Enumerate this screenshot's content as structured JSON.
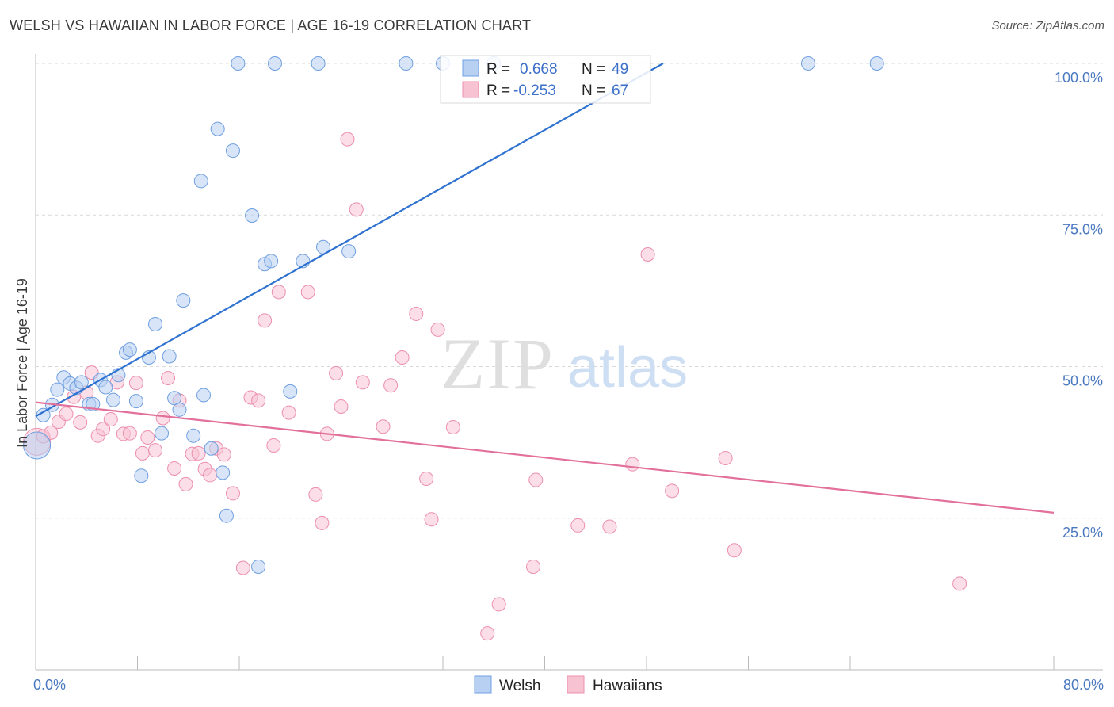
{
  "header": {
    "title": "WELSH VS HAWAIIAN IN LABOR FORCE | AGE 16-19 CORRELATION CHART",
    "source": "Source: ZipAtlas.com"
  },
  "watermark": {
    "zip": "ZIP",
    "atlas": "atlas"
  },
  "colors": {
    "welsh_fill": "#b8d0f2",
    "welsh_stroke": "#6f9fe0",
    "welsh_line": "#2f72d0",
    "hawaiian_fill": "#f7c3d3",
    "hawaiian_stroke": "#ec8fae",
    "hawaiian_line": "#e2709a",
    "grid": "#d8d8d8",
    "axis_text": "#4a78c0"
  },
  "legend": {
    "rows": [
      {
        "r_label": "R =",
        "r_value": "0.668",
        "n_label": "N =",
        "n_value": "49"
      },
      {
        "r_label": "R =",
        "r_value": "-0.253",
        "n_label": "N =",
        "n_value": "67"
      }
    ]
  },
  "bottom_legend": {
    "welsh": "Welsh",
    "hawaiians": "Hawaiians"
  },
  "chart_data": {
    "type": "scatter",
    "title": "WELSH VS HAWAIIAN IN LABOR FORCE | AGE 16-19 CORRELATION CHART",
    "xlabel": "",
    "ylabel": "In Labor Force | Age 16-19",
    "xlim": [
      0,
      80
    ],
    "ylim": [
      0,
      100
    ],
    "x_tick_labels": [
      "0.0%",
      "80.0%"
    ],
    "y_tick_labels": [
      "100.0%",
      "75.0%",
      "50.0%",
      "25.0%"
    ],
    "y_ticks": [
      100,
      75,
      50,
      25
    ],
    "grid": true,
    "legend_position": "top-center",
    "series": [
      {
        "name": "Welsh",
        "r": 0.668,
        "n": 49,
        "trend": {
          "x": [
            0,
            49.3
          ],
          "y": [
            41.8,
            100
          ]
        },
        "points": [
          [
            0.1,
            37.0
          ],
          [
            0.6,
            42.0
          ],
          [
            1.3,
            43.7
          ],
          [
            1.7,
            46.2
          ],
          [
            2.2,
            48.2
          ],
          [
            2.7,
            47.2
          ],
          [
            3.2,
            46.5
          ],
          [
            3.6,
            47.4
          ],
          [
            4.2,
            43.8
          ],
          [
            4.5,
            43.8
          ],
          [
            5.1,
            47.8
          ],
          [
            5.5,
            46.6
          ],
          [
            6.1,
            44.5
          ],
          [
            6.5,
            48.6
          ],
          [
            7.1,
            52.3
          ],
          [
            7.4,
            52.8
          ],
          [
            7.9,
            44.3
          ],
          [
            8.3,
            32.0
          ],
          [
            8.9,
            51.5
          ],
          [
            9.4,
            57.0
          ],
          [
            9.9,
            39.0
          ],
          [
            10.5,
            51.7
          ],
          [
            10.9,
            44.8
          ],
          [
            11.3,
            42.9
          ],
          [
            11.6,
            60.9
          ],
          [
            12.4,
            38.6
          ],
          [
            13.0,
            80.6
          ],
          [
            13.2,
            45.3
          ],
          [
            13.8,
            36.5
          ],
          [
            14.3,
            89.2
          ],
          [
            14.7,
            32.5
          ],
          [
            15.0,
            25.4
          ],
          [
            15.5,
            85.6
          ],
          [
            15.9,
            100
          ],
          [
            17.0,
            74.9
          ],
          [
            17.5,
            17.0
          ],
          [
            18.0,
            66.9
          ],
          [
            18.5,
            67.4
          ],
          [
            18.8,
            100
          ],
          [
            20.0,
            45.9
          ],
          [
            21.0,
            67.4
          ],
          [
            22.2,
            100
          ],
          [
            22.6,
            69.7
          ],
          [
            24.6,
            69.0
          ],
          [
            29.1,
            100
          ],
          [
            32.0,
            100
          ],
          [
            36.0,
            100
          ],
          [
            60.7,
            100
          ],
          [
            66.1,
            100
          ]
        ]
      },
      {
        "name": "Hawaiians",
        "r": -0.253,
        "n": 67,
        "trend": {
          "x": [
            0,
            80
          ],
          "y": [
            44.1,
            25.9
          ]
        },
        "points": [
          [
            0.1,
            37.6
          ],
          [
            0.6,
            38.5
          ],
          [
            1.2,
            39.1
          ],
          [
            1.8,
            40.9
          ],
          [
            2.4,
            42.2
          ],
          [
            3.0,
            45.0
          ],
          [
            3.5,
            40.8
          ],
          [
            4.0,
            45.7
          ],
          [
            4.4,
            49.0
          ],
          [
            4.9,
            38.6
          ],
          [
            5.3,
            39.7
          ],
          [
            5.9,
            41.3
          ],
          [
            6.4,
            47.4
          ],
          [
            6.9,
            38.9
          ],
          [
            7.4,
            39.0
          ],
          [
            7.9,
            47.3
          ],
          [
            8.4,
            35.7
          ],
          [
            8.8,
            38.3
          ],
          [
            9.4,
            36.2
          ],
          [
            10.0,
            41.5
          ],
          [
            10.4,
            48.1
          ],
          [
            10.9,
            33.2
          ],
          [
            11.3,
            44.4
          ],
          [
            11.8,
            30.6
          ],
          [
            12.3,
            35.6
          ],
          [
            12.8,
            35.7
          ],
          [
            13.3,
            33.1
          ],
          [
            13.7,
            32.1
          ],
          [
            14.2,
            36.5
          ],
          [
            14.8,
            35.5
          ],
          [
            15.5,
            29.1
          ],
          [
            16.3,
            16.8
          ],
          [
            16.9,
            44.9
          ],
          [
            17.5,
            44.4
          ],
          [
            18.0,
            57.6
          ],
          [
            18.7,
            37.0
          ],
          [
            19.1,
            62.3
          ],
          [
            19.9,
            42.4
          ],
          [
            21.4,
            62.3
          ],
          [
            22.0,
            28.9
          ],
          [
            22.5,
            24.2
          ],
          [
            22.9,
            38.9
          ],
          [
            23.6,
            48.9
          ],
          [
            24.0,
            43.4
          ],
          [
            24.5,
            87.5
          ],
          [
            25.2,
            75.9
          ],
          [
            25.7,
            47.4
          ],
          [
            27.3,
            40.1
          ],
          [
            27.9,
            46.9
          ],
          [
            28.8,
            51.5
          ],
          [
            29.9,
            58.7
          ],
          [
            30.7,
            31.5
          ],
          [
            31.1,
            24.8
          ],
          [
            31.6,
            56.1
          ],
          [
            32.8,
            40.0
          ],
          [
            35.5,
            6.0
          ],
          [
            36.4,
            10.8
          ],
          [
            39.1,
            17.0
          ],
          [
            39.3,
            31.3
          ],
          [
            42.6,
            23.8
          ],
          [
            45.1,
            23.6
          ],
          [
            46.9,
            33.9
          ],
          [
            48.1,
            68.5
          ],
          [
            50.0,
            29.5
          ],
          [
            54.2,
            34.9
          ],
          [
            54.9,
            19.7
          ],
          [
            72.6,
            14.2
          ]
        ]
      }
    ]
  }
}
